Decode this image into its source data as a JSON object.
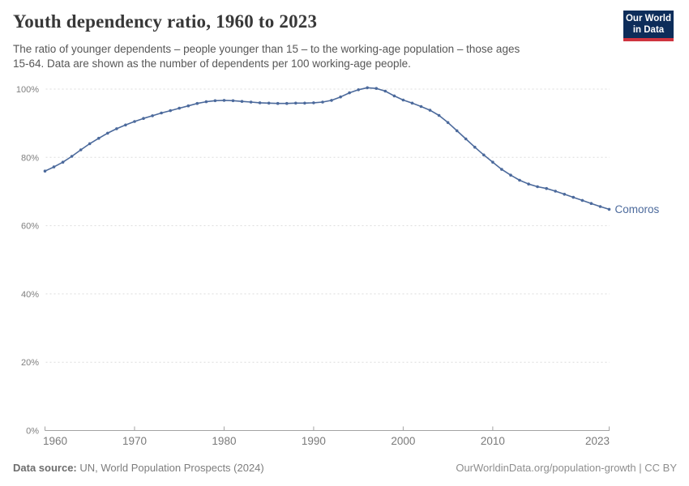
{
  "header": {
    "title": "Youth dependency ratio, 1960 to 2023",
    "subtitle_lines": [
      "The ratio of younger dependents – people younger than 15 – to the working-age population – those ages",
      "15-64. Data are shown as the number of dependents per 100 working-age people."
    ],
    "logo": {
      "line1": "Our World",
      "line2": "in Data",
      "bg_color": "#0d2d5a",
      "bar_color": "#cf343f"
    }
  },
  "chart_data": {
    "type": "line",
    "title": "Youth dependency ratio, 1960 to 2023",
    "subtitle": "The ratio of younger dependents – people younger than 15 – to the working-age population – those ages 15-64. Data are shown as the number of dependents per 100 working-age people.",
    "xlabel": "",
    "ylabel": "",
    "xlim": [
      1960,
      2023
    ],
    "ylim": [
      0,
      100
    ],
    "xticks": [
      1960,
      1970,
      1980,
      1990,
      2000,
      2010,
      2023
    ],
    "yticks": [
      0,
      20,
      40,
      60,
      80,
      100
    ],
    "ytick_suffix": "%",
    "grid": "horizontal-dashed",
    "legend_position": "line-end-label",
    "point_markers": true,
    "x": [
      1960,
      1961,
      1962,
      1963,
      1964,
      1965,
      1966,
      1967,
      1968,
      1969,
      1970,
      1971,
      1972,
      1973,
      1974,
      1975,
      1976,
      1977,
      1978,
      1979,
      1980,
      1981,
      1982,
      1983,
      1984,
      1985,
      1986,
      1987,
      1988,
      1989,
      1990,
      1991,
      1992,
      1993,
      1994,
      1995,
      1996,
      1997,
      1998,
      1999,
      2000,
      2001,
      2002,
      2003,
      2004,
      2005,
      2006,
      2007,
      2008,
      2009,
      2010,
      2011,
      2012,
      2013,
      2014,
      2015,
      2016,
      2017,
      2018,
      2019,
      2020,
      2021,
      2022,
      2023
    ],
    "series": [
      {
        "name": "Comoros",
        "color": "#4C6A9C",
        "values": [
          76.0,
          77.2,
          78.6,
          80.3,
          82.2,
          84.0,
          85.6,
          87.1,
          88.4,
          89.5,
          90.5,
          91.4,
          92.2,
          93.0,
          93.7,
          94.4,
          95.1,
          95.8,
          96.3,
          96.6,
          96.7,
          96.6,
          96.4,
          96.2,
          96.0,
          95.9,
          95.8,
          95.8,
          95.9,
          95.9,
          96.0,
          96.2,
          96.7,
          97.7,
          98.9,
          99.8,
          100.4,
          100.2,
          99.4,
          98.0,
          96.8,
          95.9,
          94.9,
          93.8,
          92.3,
          90.2,
          87.8,
          85.4,
          83.0,
          80.7,
          78.6,
          76.5,
          74.8,
          73.3,
          72.2,
          71.4,
          70.9,
          70.1,
          69.2,
          68.3,
          67.4,
          66.5,
          65.6,
          64.8
        ]
      }
    ]
  },
  "footer": {
    "data_source_label": "Data source:",
    "data_source_text": "UN, World Population Prospects (2024)",
    "credit_url": "OurWorldinData.org/population-growth",
    "credit_separator": " | ",
    "credit_license": "CC BY"
  }
}
